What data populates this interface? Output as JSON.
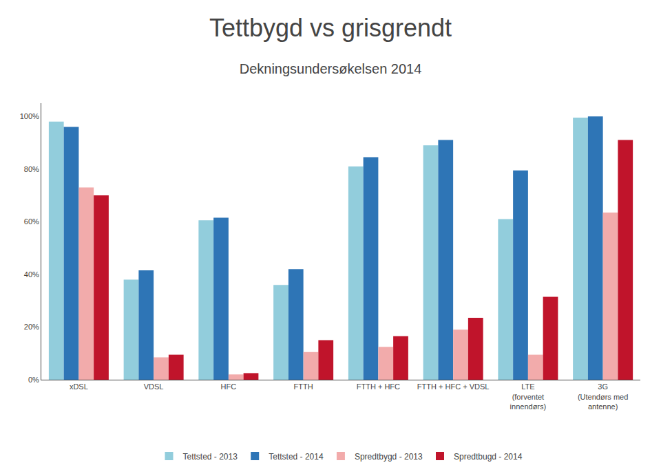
{
  "chart_data": {
    "type": "bar",
    "title": "Tettbygd vs grisgrendt",
    "subtitle": "Dekningsundersøkelsen 2014",
    "categories": [
      "xDSL",
      "VDSL",
      "HFC",
      "FTTH",
      "FTTH + HFC",
      "FTTH + HFC + VDSL",
      "LTE\n(forventet\ninnendørs)",
      "3G\n(Utendørs med\nantenne)"
    ],
    "series": [
      {
        "name": "Tettsted - 2013",
        "color": "#92CDDC",
        "values": [
          0.98,
          0.38,
          0.605,
          0.36,
          0.81,
          0.89,
          0.61,
          0.995
        ]
      },
      {
        "name": "Tettsted - 2014",
        "color": "#2E75B6",
        "values": [
          0.96,
          0.415,
          0.615,
          0.42,
          0.845,
          0.91,
          0.795,
          1.0
        ]
      },
      {
        "name": "Spredtbygd - 2013",
        "color": "#F2ABAB",
        "values": [
          0.73,
          0.085,
          0.02,
          0.105,
          0.125,
          0.19,
          0.095,
          0.635
        ]
      },
      {
        "name": "Spredtbugd - 2014",
        "color": "#C0142B",
        "values": [
          0.7,
          0.095,
          0.025,
          0.15,
          0.165,
          0.235,
          0.315,
          0.91
        ]
      }
    ],
    "ylim": [
      0,
      1.05
    ],
    "yticks": [
      {
        "value": 0,
        "label": "0%"
      },
      {
        "value": 0.2,
        "label": "20%"
      },
      {
        "value": 0.4,
        "label": "40%"
      },
      {
        "value": 0.6,
        "label": "60%"
      },
      {
        "value": 0.8,
        "label": "80%"
      },
      {
        "value": 1.0,
        "label": "100%"
      }
    ],
    "grid": false,
    "legend": "bottom"
  }
}
